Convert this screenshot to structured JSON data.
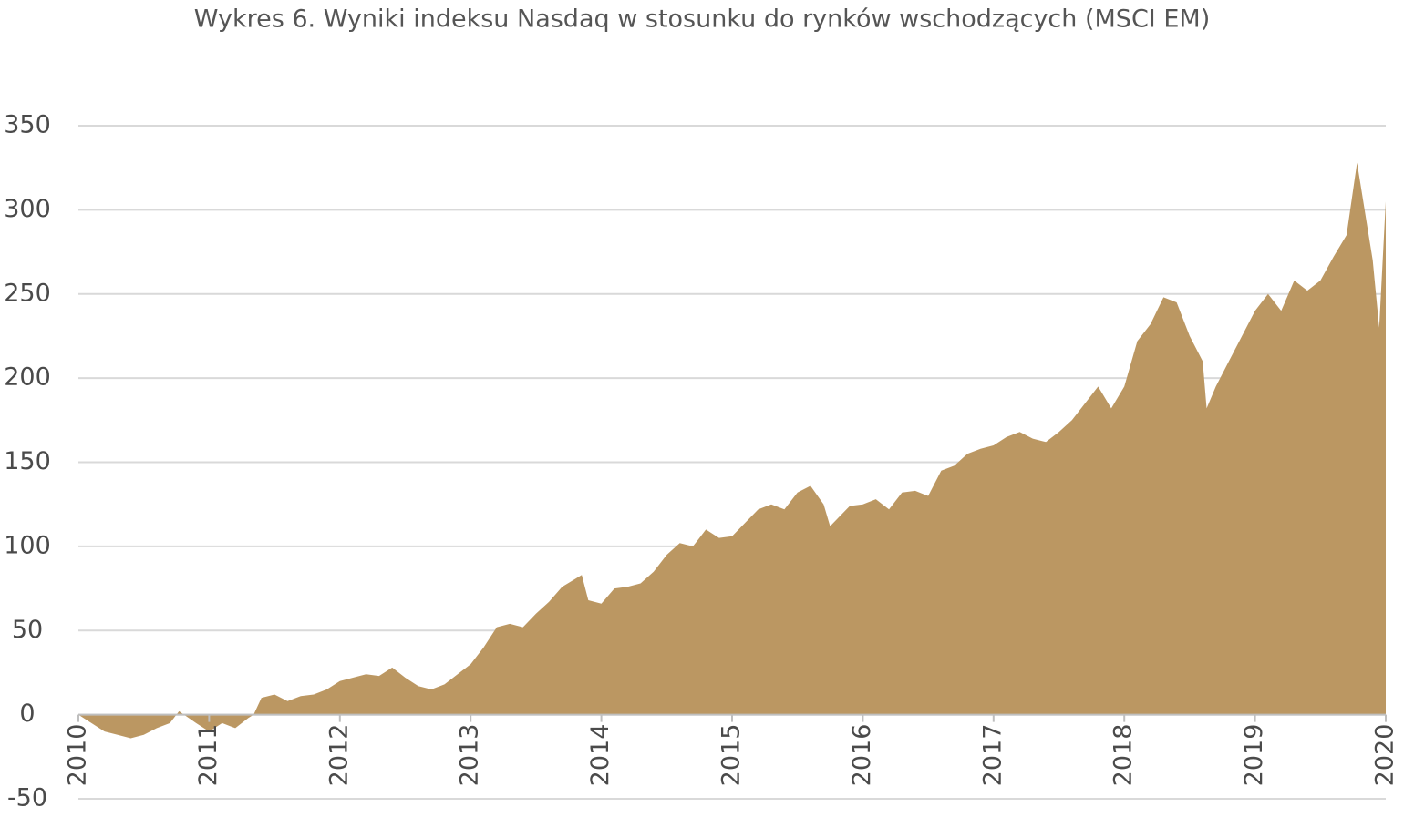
{
  "chart_data": {
    "type": "area",
    "title": "Wykres 6. Wyniki indeksu Nasdaq w stosunku do rynków wschodzących (MSCI EM)",
    "color": "#bb9762",
    "grid": true,
    "xlim": [
      2010,
      2020
    ],
    "xticks": [
      2010,
      2011,
      2012,
      2013,
      2014,
      2015,
      2016,
      2017,
      2018,
      2019,
      2020
    ],
    "ylim": [
      -50,
      350
    ],
    "yticks": [
      -50,
      0,
      50,
      100,
      150,
      200,
      250,
      300,
      350
    ],
    "x": [
      2010.0,
      2010.1,
      2010.2,
      2010.3,
      2010.4,
      2010.5,
      2010.6,
      2010.7,
      2010.77,
      2010.9,
      2011.0,
      2011.1,
      2011.2,
      2011.3,
      2011.34,
      2011.4,
      2011.5,
      2011.6,
      2011.7,
      2011.8,
      2011.9,
      2012.0,
      2012.1,
      2012.2,
      2012.3,
      2012.4,
      2012.5,
      2012.6,
      2012.7,
      2012.8,
      2012.9,
      2013.0,
      2013.1,
      2013.2,
      2013.3,
      2013.4,
      2013.5,
      2013.6,
      2013.7,
      2013.85,
      2013.9,
      2014.0,
      2014.1,
      2014.2,
      2014.3,
      2014.4,
      2014.5,
      2014.6,
      2014.7,
      2014.8,
      2014.9,
      2015.0,
      2015.1,
      2015.2,
      2015.3,
      2015.4,
      2015.5,
      2015.6,
      2015.7,
      2015.75,
      2015.9,
      2016.0,
      2016.1,
      2016.2,
      2016.3,
      2016.4,
      2016.5,
      2016.6,
      2016.7,
      2016.8,
      2016.9,
      2017.0,
      2017.1,
      2017.2,
      2017.3,
      2017.4,
      2017.5,
      2017.6,
      2017.7,
      2017.8,
      2017.9,
      2018.0,
      2018.1,
      2018.2,
      2018.3,
      2018.4,
      2018.5,
      2018.6,
      2018.63,
      2018.7,
      2018.8,
      2018.9,
      2019.0,
      2019.1,
      2019.2,
      2019.3,
      2019.4,
      2019.5,
      2019.6,
      2019.7,
      2019.78,
      2019.9,
      2019.95,
      2020.0
    ],
    "values": [
      0,
      -5,
      -10,
      -12,
      -14,
      -12,
      -8,
      -5,
      2,
      -5,
      -10,
      -5,
      -8,
      -2,
      0,
      10,
      12,
      8,
      11,
      12,
      15,
      20,
      22,
      24,
      23,
      28,
      22,
      17,
      15,
      18,
      24,
      30,
      40,
      52,
      54,
      52,
      60,
      67,
      76,
      83,
      68,
      66,
      75,
      76,
      78,
      85,
      95,
      102,
      100,
      110,
      105,
      106,
      114,
      122,
      125,
      122,
      132,
      136,
      125,
      112,
      124,
      125,
      128,
      122,
      132,
      133,
      130,
      145,
      148,
      155,
      158,
      160,
      165,
      168,
      164,
      162,
      168,
      175,
      185,
      195,
      182,
      195,
      222,
      232,
      248,
      245,
      225,
      210,
      182,
      195,
      210,
      225,
      240,
      250,
      240,
      258,
      252,
      258,
      272,
      285,
      328,
      270,
      230,
      305
    ]
  }
}
